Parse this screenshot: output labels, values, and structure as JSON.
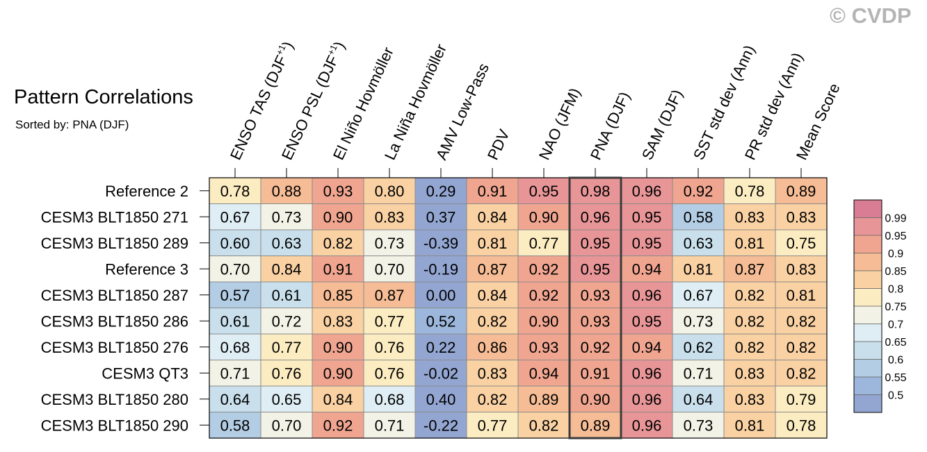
{
  "header": {
    "title": "Pattern Correlations",
    "subtitle": "Sorted by: PNA (DJF)",
    "copyright": "© CVDP"
  },
  "chart_data": {
    "type": "heatmap",
    "title": "Pattern Correlations",
    "subtitle": "Sorted by: PNA (DJF)",
    "sorted_by": "PNA (DJF)",
    "highlighted_column": "PNA (DJF)",
    "columns": [
      {
        "main": "ENSO TAS (DJF",
        "sup": "+1",
        "tail": ")"
      },
      {
        "main": "ENSO PSL (DJF",
        "sup": "+1",
        "tail": ")"
      },
      {
        "main": "El Niño Hovmöller",
        "sup": "",
        "tail": ""
      },
      {
        "main": "La Niña Hovmöller",
        "sup": "",
        "tail": ""
      },
      {
        "main": "AMV Low-Pass",
        "sup": "",
        "tail": ""
      },
      {
        "main": "PDV",
        "sup": "",
        "tail": ""
      },
      {
        "main": "NAO (JFM)",
        "sup": "",
        "tail": ""
      },
      {
        "main": "PNA (DJF)",
        "sup": "",
        "tail": ""
      },
      {
        "main": "SAM (DJF)",
        "sup": "",
        "tail": ""
      },
      {
        "main": "SST std dev (Ann)",
        "sup": "",
        "tail": ""
      },
      {
        "main": "PR std dev (Ann)",
        "sup": "",
        "tail": ""
      },
      {
        "main": "Mean Score",
        "sup": "",
        "tail": ""
      }
    ],
    "rows": [
      "Reference 2",
      "CESM3 BLT1850 271",
      "CESM3 BLT1850 289",
      "Reference 3",
      "CESM3 BLT1850 287",
      "CESM3 BLT1850 286",
      "CESM3 BLT1850 276",
      "CESM3 QT3",
      "CESM3 BLT1850 280",
      "CESM3 BLT1850 290"
    ],
    "values": [
      [
        "0.78",
        "0.88",
        "0.93",
        "0.80",
        "0.29",
        "0.91",
        "0.95",
        "0.98",
        "0.96",
        "0.92",
        "0.78",
        "0.89"
      ],
      [
        "0.67",
        "0.73",
        "0.90",
        "0.83",
        "0.37",
        "0.84",
        "0.90",
        "0.96",
        "0.95",
        "0.58",
        "0.83",
        "0.83"
      ],
      [
        "0.60",
        "0.63",
        "0.82",
        "0.73",
        "-0.39",
        "0.81",
        "0.77",
        "0.95",
        "0.95",
        "0.63",
        "0.81",
        "0.75"
      ],
      [
        "0.70",
        "0.84",
        "0.91",
        "0.70",
        "-0.19",
        "0.87",
        "0.92",
        "0.95",
        "0.94",
        "0.81",
        "0.87",
        "0.83"
      ],
      [
        "0.57",
        "0.61",
        "0.85",
        "0.87",
        "0.00",
        "0.84",
        "0.92",
        "0.93",
        "0.96",
        "0.67",
        "0.82",
        "0.81"
      ],
      [
        "0.61",
        "0.72",
        "0.83",
        "0.77",
        "0.52",
        "0.82",
        "0.90",
        "0.93",
        "0.95",
        "0.73",
        "0.82",
        "0.82"
      ],
      [
        "0.68",
        "0.77",
        "0.90",
        "0.76",
        "0.22",
        "0.86",
        "0.93",
        "0.92",
        "0.94",
        "0.62",
        "0.82",
        "0.82"
      ],
      [
        "0.71",
        "0.76",
        "0.90",
        "0.76",
        "-0.02",
        "0.83",
        "0.94",
        "0.91",
        "0.96",
        "0.71",
        "0.83",
        "0.82"
      ],
      [
        "0.64",
        "0.65",
        "0.84",
        "0.68",
        "0.40",
        "0.82",
        "0.89",
        "0.90",
        "0.96",
        "0.64",
        "0.83",
        "0.79"
      ],
      [
        "0.58",
        "0.70",
        "0.92",
        "0.71",
        "-0.22",
        "0.77",
        "0.82",
        "0.89",
        "0.96",
        "0.73",
        "0.81",
        "0.78"
      ]
    ],
    "colorbar": {
      "levels": [
        "0.99",
        "0.95",
        "0.9",
        "0.85",
        "0.8",
        "0.75",
        "0.7",
        "0.65",
        "0.6",
        "0.55",
        "0.5"
      ],
      "thresholds": [
        0.99,
        0.95,
        0.9,
        0.85,
        0.8,
        0.75,
        0.7,
        0.65,
        0.6,
        0.55,
        0.5
      ],
      "colors": [
        "#d97d95",
        "#e89597",
        "#f0a590",
        "#f5bc95",
        "#f9d1a3",
        "#fcecc1",
        "#f2f2e6",
        "#dfeef4",
        "#c9e0ec",
        "#b3cde4",
        "#9cb7db",
        "#93a6d2"
      ]
    }
  }
}
